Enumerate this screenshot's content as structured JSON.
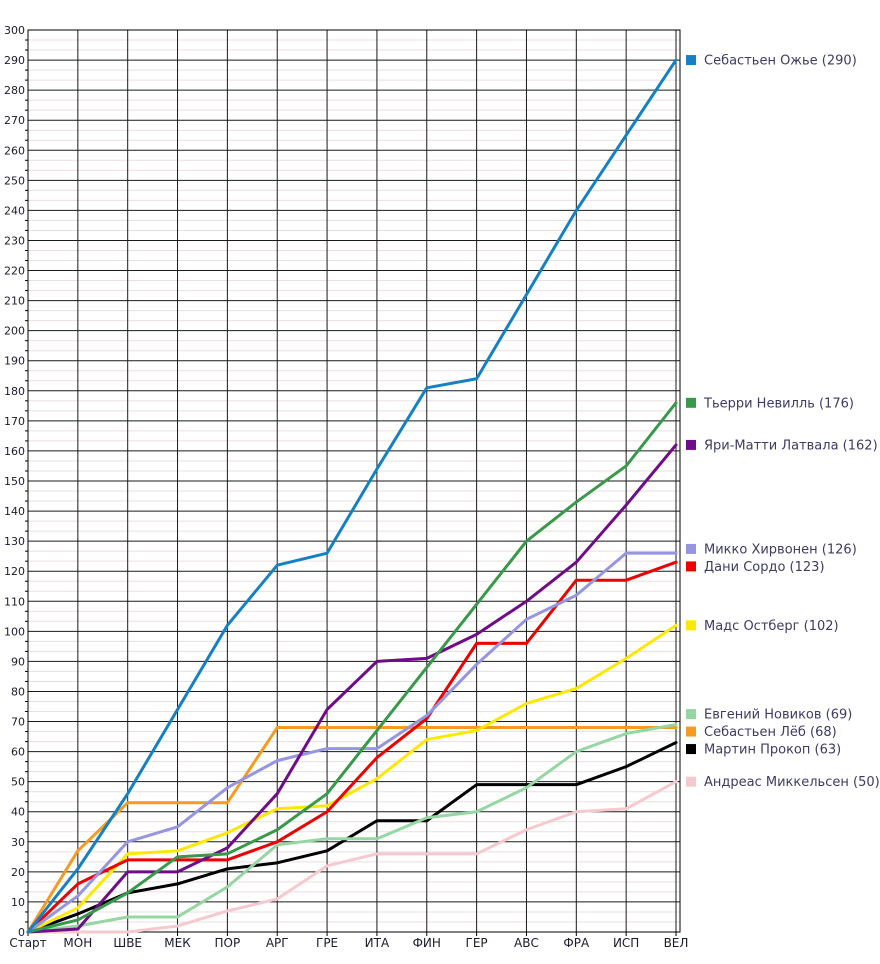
{
  "chart_data": {
    "type": "line",
    "title": "",
    "xlabel": "",
    "ylabel": "",
    "x_categories": [
      "Старт",
      "МОН",
      "ШВЕ",
      "МЕК",
      "ПОР",
      "АРГ",
      "ГРЕ",
      "ИТА",
      "ФИН",
      "ГЕР",
      "АВС",
      "ФРА",
      "ИСП",
      "ВЕЛ"
    ],
    "y_axis": {
      "min": 0,
      "max": 300,
      "major_step": 10,
      "minor_divisions": 3
    },
    "grid": "on",
    "legend_position": "right",
    "legend_label_format": "{name} ({final})",
    "series": [
      {
        "name": "Себастьен Ожье",
        "final": 290,
        "color": "#1581c5",
        "values": [
          0,
          21,
          46,
          74,
          102,
          122,
          126,
          154,
          181,
          184,
          212,
          240,
          265,
          290
        ]
      },
      {
        "name": "Тьерри Невилль",
        "final": 176,
        "color": "#37994a",
        "values": [
          0,
          4,
          13,
          25,
          26,
          34,
          46,
          67,
          88,
          109,
          130,
          143,
          155,
          176
        ]
      },
      {
        "name": "Яри-Матти Латвала",
        "final": 162,
        "color": "#6f0c87",
        "values": [
          0,
          1,
          20,
          20,
          28,
          46,
          74,
          90,
          91,
          99,
          110,
          123,
          142,
          162
        ]
      },
      {
        "name": "Микко Хирвонен",
        "final": 126,
        "color": "#9595e2",
        "values": [
          0,
          12,
          30,
          35,
          48,
          57,
          61,
          61,
          72,
          89,
          104,
          112,
          126,
          126
        ]
      },
      {
        "name": "Дани Сордо",
        "final": 123,
        "color": "#ee0000",
        "values": [
          0,
          16,
          24,
          24,
          24,
          30,
          40,
          58,
          71,
          96,
          96,
          117,
          117,
          123
        ]
      },
      {
        "name": "Мадс Остберг",
        "final": 102,
        "color": "#ffe800",
        "values": [
          0,
          8,
          26,
          27,
          33,
          41,
          42,
          51,
          64,
          67,
          76,
          81,
          91,
          102
        ]
      },
      {
        "name": "Евгений Новиков",
        "final": 69,
        "color": "#96d6a3",
        "values": [
          0,
          2,
          5,
          5,
          15,
          29,
          31,
          31,
          38,
          40,
          48,
          60,
          66,
          69
        ]
      },
      {
        "name": "Себастьен Лёб",
        "final": 68,
        "color": "#f59b22",
        "values": [
          0,
          27,
          43,
          43,
          43,
          68,
          68,
          68,
          68,
          68,
          68,
          68,
          68,
          68
        ]
      },
      {
        "name": "Мартин Прокоп",
        "final": 63,
        "color": "#000000",
        "values": [
          0,
          6,
          13,
          16,
          21,
          23,
          27,
          37,
          37,
          49,
          49,
          49,
          55,
          63
        ]
      },
      {
        "name": "Андреас Миккельсен",
        "final": 50,
        "color": "#f5c9ce",
        "values": [
          0,
          0,
          0,
          2,
          7,
          11,
          22,
          26,
          26,
          26,
          34,
          40,
          41,
          50
        ]
      }
    ],
    "colors": {
      "grid_major": "#1a1a1a",
      "grid_minor": "#ecdfdf",
      "axis": "#000000",
      "tick_label": "#1a1a2e",
      "legend_text": "#3c3c64"
    }
  }
}
